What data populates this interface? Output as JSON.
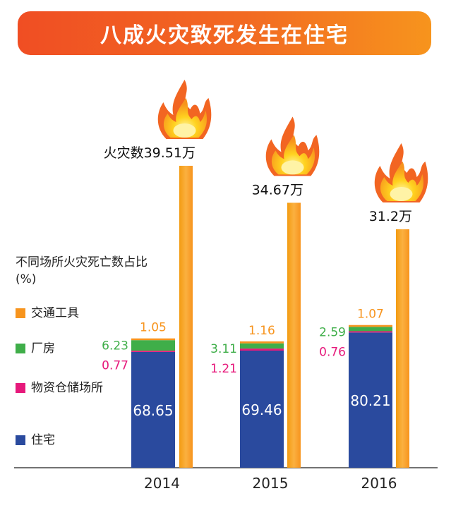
{
  "header": {
    "title": "八成火灾致死发生在住宅"
  },
  "legend": {
    "title": "不同场所火灾死亡数占比(%)",
    "items": [
      {
        "label": "交通工具",
        "color": "#f7941d"
      },
      {
        "label": "厂房",
        "color": "#3fae49"
      },
      {
        "label": "物资仓储场所",
        "color": "#e6197b"
      },
      {
        "label": "住宅",
        "color": "#2a4a9e"
      }
    ]
  },
  "fire_total_prefix": "火灾数",
  "colors": {
    "fire_bar": "#f7941d",
    "axis": "#444444",
    "residence_value_text": "#ffffff"
  },
  "chart_data": {
    "type": "bar",
    "categories": [
      "2014",
      "2015",
      "2016"
    ],
    "stacked_series": [
      {
        "name": "住宅",
        "values": [
          68.65,
          69.46,
          80.21
        ],
        "color": "#2a4a9e"
      },
      {
        "name": "物资仓储场所",
        "values": [
          0.77,
          1.21,
          0.76
        ],
        "color": "#e6197b"
      },
      {
        "name": "厂房",
        "values": [
          6.23,
          3.11,
          2.59
        ],
        "color": "#3fae49"
      },
      {
        "name": "交通工具",
        "values": [
          1.05,
          1.16,
          1.07
        ],
        "color": "#f7941d"
      }
    ],
    "fire_count": {
      "values": [
        39.51,
        34.67,
        31.2
      ],
      "labels": [
        "39.51万",
        "34.67万",
        "31.2万"
      ],
      "color": "#f7941d"
    }
  }
}
